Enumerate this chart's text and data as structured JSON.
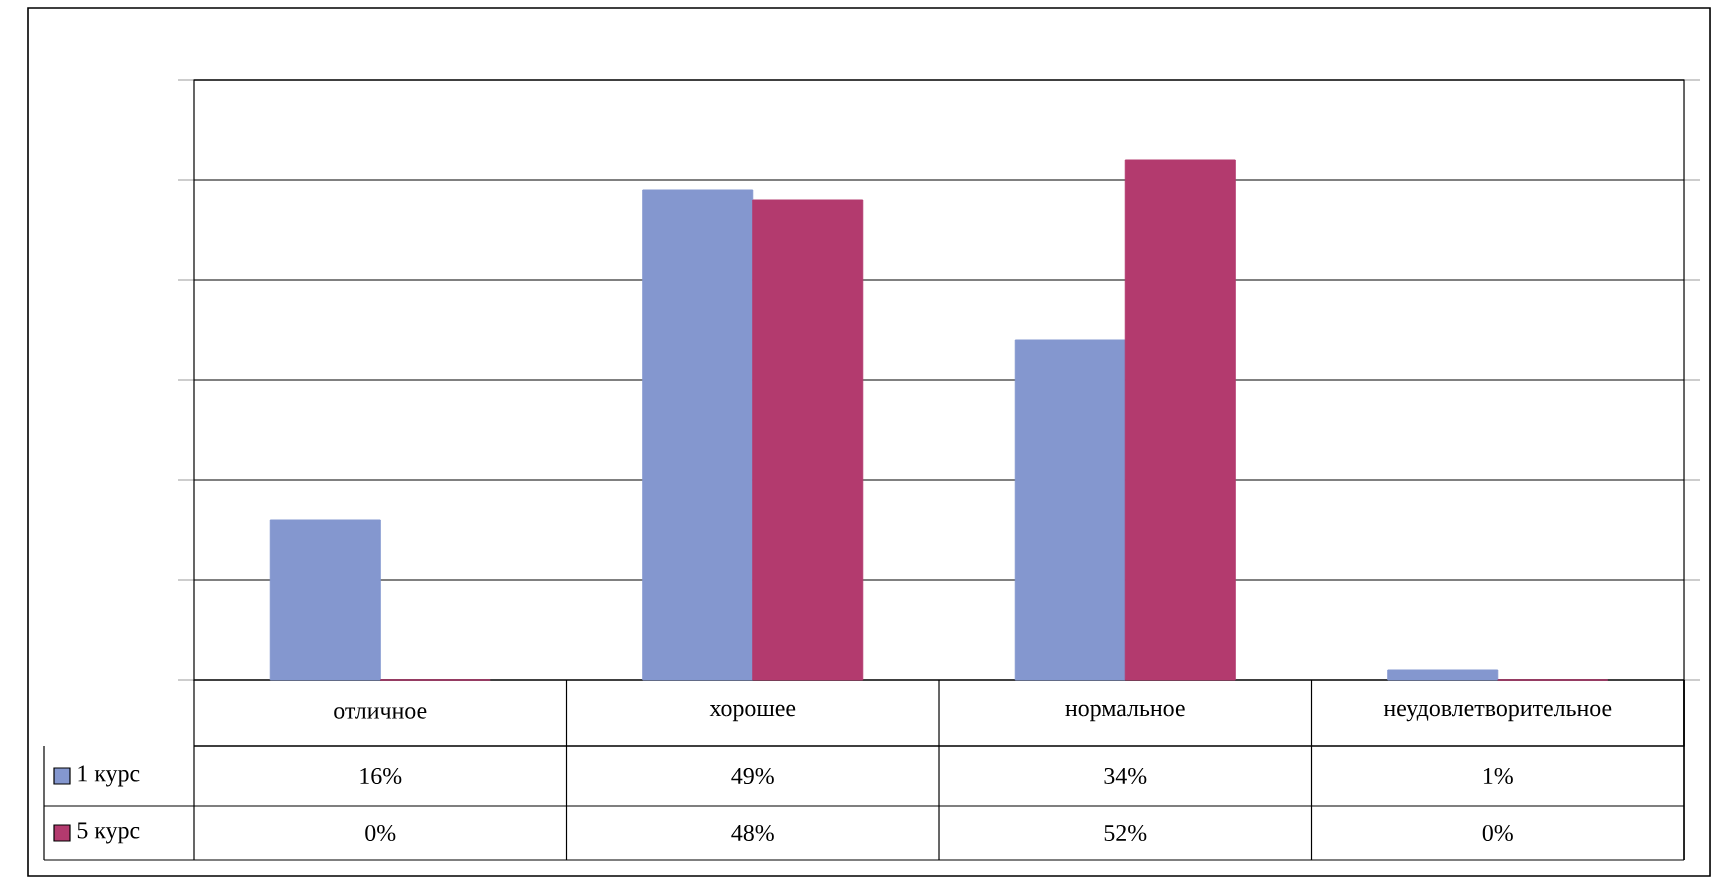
{
  "chart_data": {
    "type": "bar",
    "categories": [
      "отличное",
      "хорошее",
      "нормальное",
      "неудовлетворительное"
    ],
    "series": [
      {
        "name": "1 курс",
        "color": "#8497cf",
        "values": [
          16,
          49,
          34,
          1
        ],
        "value_labels": [
          "16%",
          "49%",
          "34%",
          "1%"
        ]
      },
      {
        "name": "5 курс",
        "color": "#b33a6e",
        "values": [
          0,
          48,
          52,
          0
        ],
        "value_labels": [
          "0%",
          "48%",
          "52%",
          "0%"
        ]
      }
    ],
    "ylim": [
      0,
      60
    ],
    "yticks": [
      {
        "value": 0,
        "label": null
      },
      {
        "value": 10,
        "label": null
      },
      {
        "value": 20,
        "label": null
      },
      {
        "value": 30,
        "label": null
      },
      {
        "value": 40,
        "label": null
      },
      {
        "value": 50,
        "label": null
      },
      {
        "value": 60,
        "label": null
      }
    ],
    "tick_labels": "x",
    "grid": "y",
    "legend": "bottom left"
  }
}
